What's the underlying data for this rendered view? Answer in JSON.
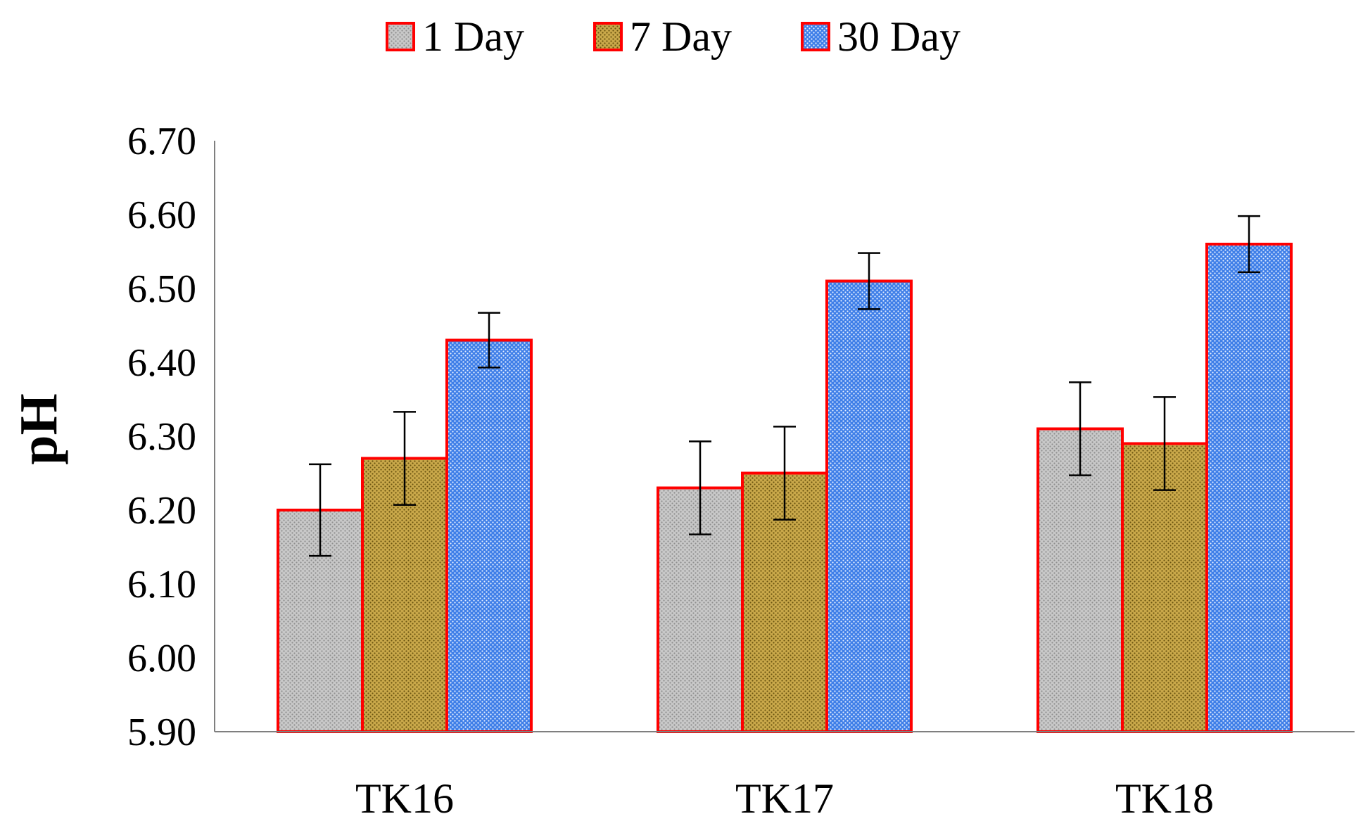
{
  "chart_data": {
    "type": "bar",
    "title": "",
    "xlabel": "",
    "ylabel": "pH",
    "ylim": [
      5.9,
      6.7
    ],
    "yticks": [
      "5.90",
      "6.00",
      "6.10",
      "6.20",
      "6.30",
      "6.40",
      "6.50",
      "6.60",
      "6.70"
    ],
    "categories": [
      "TK16",
      "TK17",
      "TK18"
    ],
    "series": [
      {
        "name": "1 Day",
        "values": [
          6.2,
          6.23,
          6.31
        ],
        "errors": [
          0.062,
          0.063,
          0.063
        ],
        "fill": "#c8c8c8",
        "pattern_color": "#8f8f8f"
      },
      {
        "name": "7 Day",
        "values": [
          6.27,
          6.25,
          6.29
        ],
        "errors": [
          0.063,
          0.063,
          0.063
        ],
        "fill": "#c9a84a",
        "pattern_color": "#6b5410"
      },
      {
        "name": "30 Day",
        "values": [
          6.43,
          6.51,
          6.56
        ],
        "errors": [
          0.037,
          0.038,
          0.038
        ],
        "fill": "#3f7fe8",
        "pattern_color": "#e6efff"
      }
    ],
    "bar_border": "#ff0000",
    "grid": false,
    "legend_position": "top-center"
  }
}
